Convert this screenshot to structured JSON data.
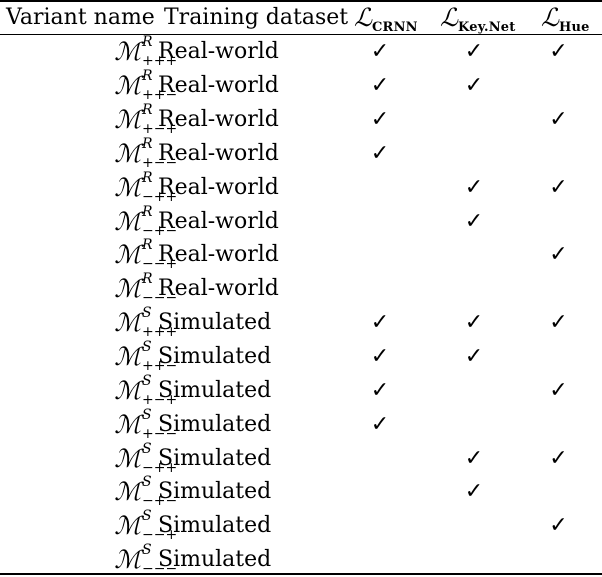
{
  "header": {
    "variant_name": "Variant name",
    "training_dataset": "Training dataset",
    "loss_symbol": "ℒ",
    "loss_crnn_sub": "CRNN",
    "loss_keynet_sub": "Key.Net",
    "loss_hue_sub": "Hue"
  },
  "model_symbol": "ℳ",
  "check_glyph": "✓",
  "rows": [
    {
      "sup": "R",
      "sub": "+++",
      "dataset": "Real-world",
      "crnn": "✓",
      "keynet": "✓",
      "hue": "✓"
    },
    {
      "sup": "R",
      "sub": "++−",
      "dataset": "Real-world",
      "crnn": "✓",
      "keynet": "✓",
      "hue": ""
    },
    {
      "sup": "R",
      "sub": "+−+",
      "dataset": "Real-world",
      "crnn": "✓",
      "keynet": "",
      "hue": "✓"
    },
    {
      "sup": "R",
      "sub": "+−−",
      "dataset": "Real-world",
      "crnn": "✓",
      "keynet": "",
      "hue": ""
    },
    {
      "sup": "R",
      "sub": "−++",
      "dataset": "Real-world",
      "crnn": "",
      "keynet": "✓",
      "hue": "✓"
    },
    {
      "sup": "R",
      "sub": "−+−",
      "dataset": "Real-world",
      "crnn": "",
      "keynet": "✓",
      "hue": ""
    },
    {
      "sup": "R",
      "sub": "−−+",
      "dataset": "Real-world",
      "crnn": "",
      "keynet": "",
      "hue": "✓"
    },
    {
      "sup": "R",
      "sub": "−−−",
      "dataset": "Real-world",
      "crnn": "",
      "keynet": "",
      "hue": ""
    },
    {
      "sup": "S",
      "sub": "+++",
      "dataset": "Simulated",
      "crnn": "✓",
      "keynet": "✓",
      "hue": "✓"
    },
    {
      "sup": "S",
      "sub": "++−",
      "dataset": "Simulated",
      "crnn": "✓",
      "keynet": "✓",
      "hue": ""
    },
    {
      "sup": "S",
      "sub": "+−+",
      "dataset": "Simulated",
      "crnn": "✓",
      "keynet": "",
      "hue": "✓"
    },
    {
      "sup": "S",
      "sub": "+−−",
      "dataset": "Simulated",
      "crnn": "✓",
      "keynet": "",
      "hue": ""
    },
    {
      "sup": "S",
      "sub": "−++",
      "dataset": "Simulated",
      "crnn": "",
      "keynet": "✓",
      "hue": "✓"
    },
    {
      "sup": "S",
      "sub": "−+−",
      "dataset": "Simulated",
      "crnn": "",
      "keynet": "✓",
      "hue": ""
    },
    {
      "sup": "S",
      "sub": "−−+",
      "dataset": "Simulated",
      "crnn": "",
      "keynet": "",
      "hue": "✓"
    },
    {
      "sup": "S",
      "sub": "−−−",
      "dataset": "Simulated",
      "crnn": "",
      "keynet": "",
      "hue": ""
    }
  ]
}
